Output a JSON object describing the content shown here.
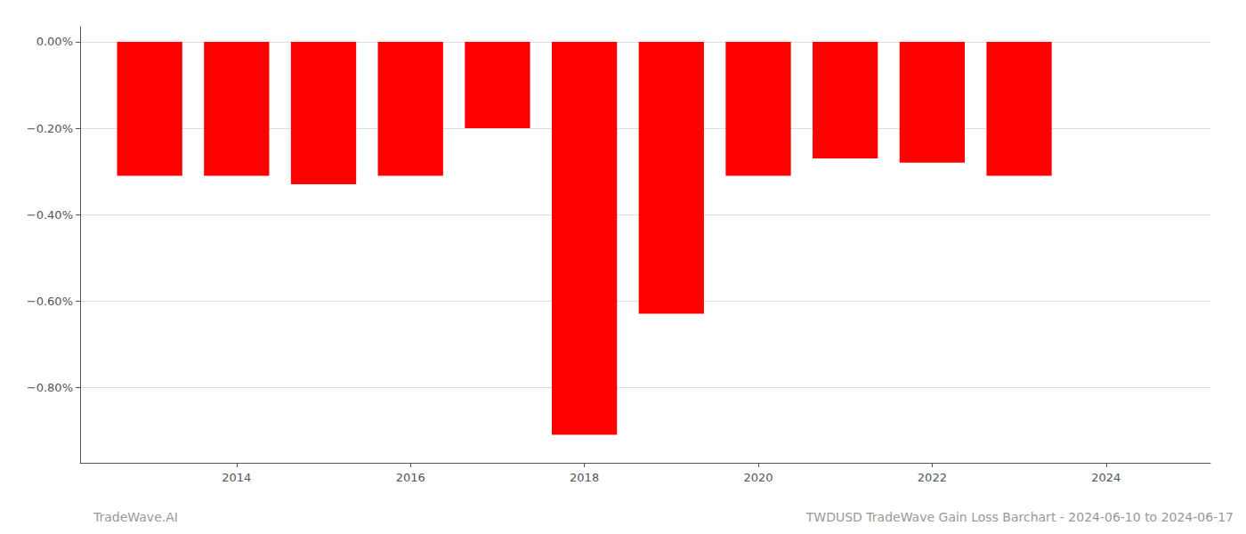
{
  "chart_data": {
    "type": "bar",
    "x": [
      2013,
      2014,
      2015,
      2016,
      2017,
      2018,
      2019,
      2020,
      2021,
      2022,
      2023
    ],
    "values": [
      -0.0031,
      -0.0031,
      -0.0033,
      -0.0031,
      -0.002,
      -0.0091,
      -0.0063,
      -0.0031,
      -0.0027,
      -0.0028,
      -0.0031
    ],
    "color": "#ff0000",
    "xlim": [
      2012.2,
      2025.2
    ],
    "xticks": [
      2014,
      2016,
      2018,
      2020,
      2022,
      2024
    ],
    "ylim": [
      -0.00975,
      0.00035
    ],
    "yticks": [
      {
        "value": 0.0,
        "label": "0.00%"
      },
      {
        "value": -0.002,
        "label": "−0.20%"
      },
      {
        "value": -0.004,
        "label": "−0.40%"
      },
      {
        "value": -0.006,
        "label": "−0.60%"
      },
      {
        "value": -0.008,
        "label": "−0.80%"
      }
    ],
    "grid": true,
    "annotations": [
      "TradeWave.AI",
      "TWDUSD TradeWave Gain Loss Barchart - 2024-06-10 to 2024-06-17"
    ]
  }
}
